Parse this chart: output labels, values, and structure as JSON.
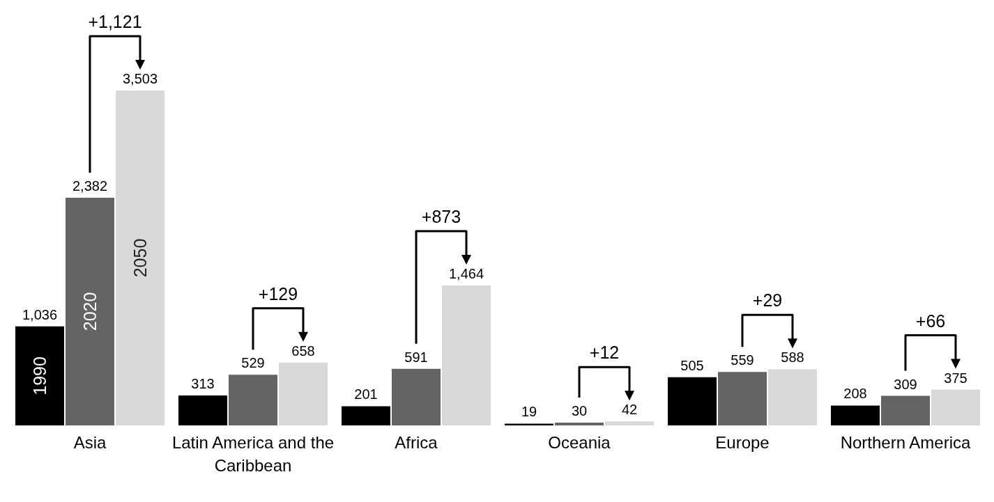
{
  "chart_data": {
    "type": "bar",
    "categories": [
      "Asia",
      "Latin America and the Caribbean",
      "Africa",
      "Oceania",
      "Europe",
      "Northern America"
    ],
    "series": [
      {
        "name": "1990",
        "color": "#000000",
        "values": [
          1036,
          313,
          201,
          19,
          505,
          208
        ],
        "value_labels": [
          "1,036",
          "313",
          "201",
          "19",
          "505",
          "208"
        ]
      },
      {
        "name": "2020",
        "color": "#646464",
        "values": [
          2382,
          529,
          591,
          30,
          559,
          309
        ],
        "value_labels": [
          "2,382",
          "529",
          "591",
          "30",
          "559",
          "309"
        ]
      },
      {
        "name": "2050",
        "color": "#d9d9d9",
        "values": [
          3503,
          658,
          1464,
          42,
          588,
          375
        ],
        "value_labels": [
          "3,503",
          "658",
          "1,464",
          "42",
          "588",
          "375"
        ]
      }
    ],
    "tick_labels": "x",
    "annotations": [
      "+1,121",
      "+129",
      "+873",
      "+12",
      "+29",
      "+66"
    ]
  }
}
